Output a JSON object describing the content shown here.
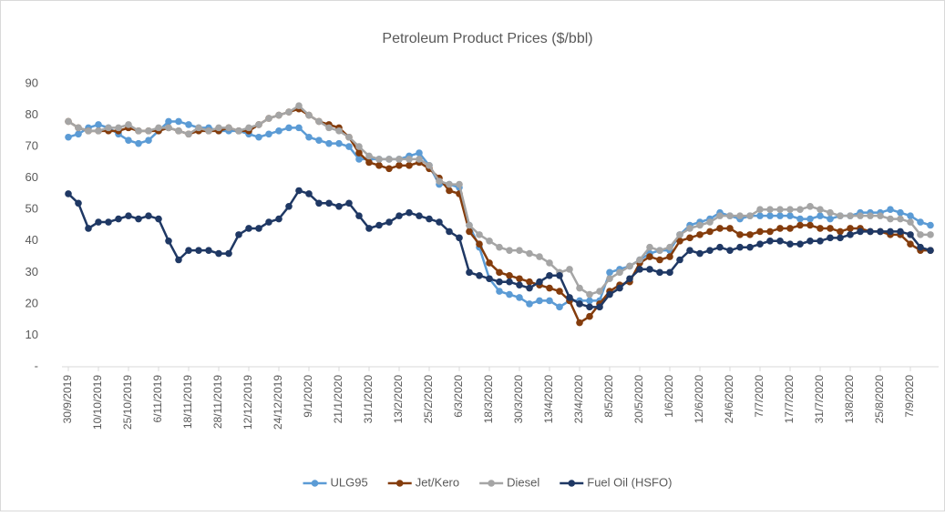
{
  "chart_data": {
    "type": "line",
    "title": "Petroleum Product Prices ($/bbl)",
    "categories": [
      "30/9/2019",
      null,
      null,
      "10/10/2019",
      null,
      null,
      "25/10/2019",
      null,
      null,
      "6/11/2019",
      null,
      null,
      "18/11/2019",
      null,
      null,
      "28/11/2019",
      null,
      null,
      "12/12/2019",
      null,
      null,
      "24/12/2019",
      null,
      null,
      "9/1/2020",
      null,
      null,
      "21/1/2020",
      null,
      null,
      "31/1/2020",
      null,
      null,
      "13/2/2020",
      null,
      null,
      "25/2/2020",
      null,
      null,
      "6/3/2020",
      null,
      null,
      "18/3/2020",
      null,
      null,
      "30/3/2020",
      null,
      null,
      "13/4/2020",
      null,
      null,
      "23/4/2020",
      null,
      null,
      "8/5/2020",
      null,
      null,
      "20/5/2020",
      null,
      null,
      "1/6/2020",
      null,
      null,
      "12/6/2020",
      null,
      null,
      "24/6/2020",
      null,
      null,
      "7/7/2020",
      null,
      null,
      "17/7/2020",
      null,
      null,
      "31/7/2020",
      null,
      null,
      "13/8/2020",
      null,
      null,
      "25/8/2020",
      null,
      null,
      "7/9/2020",
      null,
      null
    ],
    "series": [
      {
        "name": "ULG95",
        "color": "#5b9bd5",
        "values": [
          73,
          74,
          76,
          77,
          76,
          74,
          72,
          71,
          72,
          75,
          78,
          78,
          77,
          76,
          76,
          75,
          75,
          75,
          74,
          73,
          74,
          75,
          76,
          76,
          73,
          72,
          71,
          71,
          70,
          66,
          66,
          66,
          66,
          66,
          67,
          68,
          64,
          58,
          58,
          57,
          45,
          38,
          28,
          24,
          23,
          22,
          20,
          21,
          21,
          19,
          21,
          21,
          21,
          21,
          30,
          31,
          32,
          34,
          36,
          37,
          37,
          42,
          45,
          46,
          47,
          49,
          48,
          47,
          48,
          48,
          48,
          48,
          48,
          47,
          47,
          48,
          47,
          48,
          48,
          49,
          49,
          49,
          50,
          49,
          48,
          46,
          45
        ]
      },
      {
        "name": "Jet/Kero",
        "color": "#843c0c",
        "values": [
          78,
          76,
          75,
          75,
          75,
          75,
          76,
          75,
          75,
          75,
          76,
          75,
          74,
          75,
          75,
          75,
          76,
          75,
          75,
          77,
          79,
          80,
          81,
          82,
          80,
          78,
          77,
          76,
          73,
          68,
          65,
          64,
          63,
          64,
          64,
          65,
          63,
          60,
          56,
          55,
          43,
          39,
          33,
          30,
          29,
          28,
          27,
          26,
          25,
          24,
          21,
          14,
          16,
          20,
          24,
          26,
          27,
          33,
          35,
          34,
          35,
          40,
          41,
          42,
          43,
          44,
          44,
          42,
          42,
          43,
          43,
          44,
          44,
          45,
          45,
          44,
          44,
          43,
          44,
          44,
          43,
          43,
          42,
          42,
          39,
          37,
          37
        ]
      },
      {
        "name": "Diesel",
        "color": "#a5a5a5",
        "values": [
          78,
          76,
          75,
          75,
          76,
          76,
          77,
          75,
          75,
          76,
          76,
          75,
          74,
          76,
          75,
          76,
          76,
          75,
          76,
          77,
          79,
          80,
          81,
          83,
          80,
          78,
          76,
          75,
          73,
          70,
          67,
          66,
          66,
          66,
          66,
          66,
          64,
          59,
          58,
          58,
          45,
          42,
          40,
          38,
          37,
          37,
          36,
          35,
          33,
          30,
          31,
          25,
          23,
          24,
          28,
          30,
          32,
          34,
          38,
          37,
          38,
          42,
          44,
          45,
          46,
          48,
          48,
          48,
          48,
          50,
          50,
          50,
          50,
          50,
          51,
          50,
          49,
          48,
          48,
          48,
          48,
          48,
          47,
          47,
          46,
          42,
          42
        ]
      },
      {
        "name": "Fuel Oil (HSFO)",
        "color": "#1f3864",
        "values": [
          55,
          52,
          44,
          46,
          46,
          47,
          48,
          47,
          48,
          47,
          40,
          34,
          37,
          37,
          37,
          36,
          36,
          42,
          44,
          44,
          46,
          47,
          51,
          56,
          55,
          52,
          52,
          51,
          52,
          48,
          44,
          45,
          46,
          48,
          49,
          48,
          47,
          46,
          43,
          41,
          30,
          29,
          28,
          27,
          27,
          26,
          25,
          27,
          29,
          29,
          22,
          20,
          19,
          19,
          23,
          25,
          28,
          31,
          31,
          30,
          30,
          34,
          37,
          36,
          37,
          38,
          37,
          38,
          38,
          39,
          40,
          40,
          39,
          39,
          40,
          40,
          41,
          41,
          42,
          43,
          43,
          43,
          43,
          43,
          42,
          38,
          37
        ]
      }
    ],
    "ylim": [
      0,
      90
    ],
    "yticks": [
      {
        "value": 0,
        "label": "-"
      },
      10,
      20,
      30,
      40,
      50,
      60,
      70,
      80,
      90
    ],
    "grid": false,
    "legend": "bottom"
  }
}
